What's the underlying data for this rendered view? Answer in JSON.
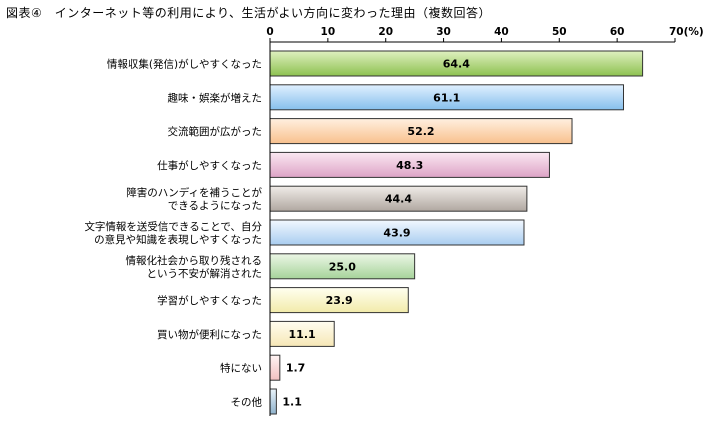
{
  "chart_data": {
    "type": "bar",
    "orientation": "horizontal",
    "title": "図表④　インターネット等の利用により、生活がよい方向に変わった理由（複数回答）",
    "unit_label": "70(%)",
    "xlim": [
      0,
      70
    ],
    "ticks": [
      "0",
      "10",
      "20",
      "30",
      "40",
      "50",
      "60"
    ],
    "tick_values": [
      0,
      10,
      20,
      30,
      40,
      50,
      60
    ],
    "categories": [
      [
        "情報収集(発信)がしやすくなった"
      ],
      [
        "趣味・娯楽が増えた"
      ],
      [
        "交流範囲が広がった"
      ],
      [
        "仕事がしやすくなった"
      ],
      [
        "障害のハンディを補うことが",
        "できるようになった"
      ],
      [
        "文字情報を送受信できることで、自分",
        "の意見や知識を表現しやすくなった"
      ],
      [
        "情報化社会から取り残される",
        "という不安が解消された"
      ],
      [
        "学習がしやすくなった"
      ],
      [
        "買い物が便利になった"
      ],
      [
        "特にない"
      ],
      [
        "その他"
      ]
    ],
    "values": [
      64.4,
      61.1,
      52.2,
      48.3,
      44.4,
      43.9,
      25.0,
      23.9,
      11.1,
      1.7,
      1.1
    ],
    "value_labels": [
      "64.4",
      "61.1",
      "52.2",
      "48.3",
      "44.4",
      "43.9",
      "25.0",
      "23.9",
      "11.1",
      "1.7",
      "1.1"
    ],
    "colors": [
      [
        "#dff0c0",
        "#8dc150"
      ],
      [
        "#e0f0ff",
        "#86bfec"
      ],
      [
        "#fff0e0",
        "#f8c08d"
      ],
      [
        "#fbe8f2",
        "#dda3c6"
      ],
      [
        "#f0ece8",
        "#b0a7a0"
      ],
      [
        "#f2f8ff",
        "#a9cdf0"
      ],
      [
        "#ecf7e6",
        "#a6d39a"
      ],
      [
        "#fffff0",
        "#f2ebaa"
      ],
      [
        "#fffdf0",
        "#f6e7b6"
      ],
      [
        "#fff4f4",
        "#f1c0c0"
      ],
      [
        "#eaf4fb",
        "#8fb2cc"
      ]
    ],
    "grid": false,
    "legend": "none"
  }
}
